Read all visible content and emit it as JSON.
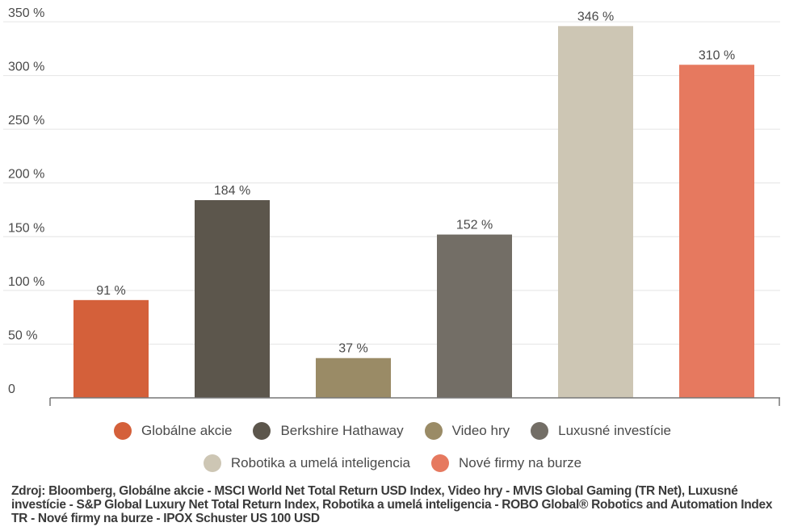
{
  "chart_data": {
    "type": "bar",
    "title": "",
    "xlabel": "",
    "ylabel": "",
    "ylim": [
      0,
      350
    ],
    "yticks": [
      {
        "value": 0,
        "label": "0"
      },
      {
        "value": 50,
        "label": "50 %"
      },
      {
        "value": 100,
        "label": "100 %"
      },
      {
        "value": 150,
        "label": "150 %"
      },
      {
        "value": 200,
        "label": "200 %"
      },
      {
        "value": 250,
        "label": "250 %"
      },
      {
        "value": 300,
        "label": "300 %"
      },
      {
        "value": 350,
        "label": "350 %"
      }
    ],
    "grid": true,
    "legend_position": "bottom",
    "series": [
      {
        "name": "Globálne akcie",
        "value": 91,
        "label": "91 %",
        "color": "#d4603a"
      },
      {
        "name": "Berkshire Hathaway",
        "value": 184,
        "label": "184 %",
        "color": "#5c564c"
      },
      {
        "name": "Video hry",
        "value": 37,
        "label": "37 %",
        "color": "#9a8b66"
      },
      {
        "name": "Luxusné investície",
        "value": 152,
        "label": "152 %",
        "color": "#736e66"
      },
      {
        "name": "Robotika a umelá inteligencia",
        "value": 346,
        "label": "346 %",
        "color": "#cdc6b4"
      },
      {
        "name": "Nové firmy na burze",
        "value": 310,
        "label": "310 %",
        "color": "#e6795f"
      }
    ]
  },
  "source": "Zdroj: Bloomberg, Globálne akcie - MSCI World Net Total Return USD Index, Video hry - MVIS Global Gaming (TR Net), Luxusné investície - S&P Global Luxury Net Total Return Index, Robotika a umelá inteligencia - ROBO Global® Robotics and Automation Index TR - Nové firmy na burze - IPOX Schuster US 100 USD"
}
